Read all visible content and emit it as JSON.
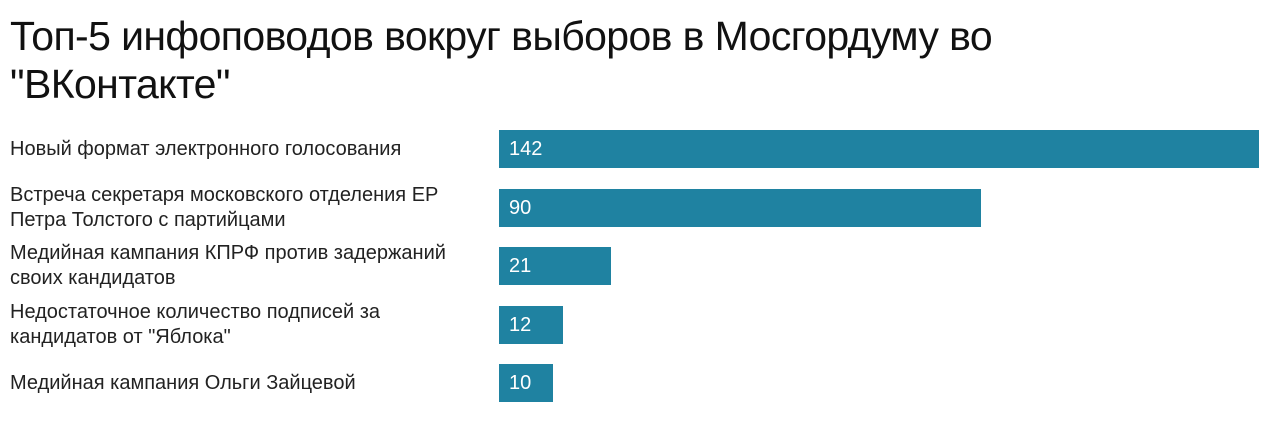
{
  "title": "Топ-5 инфоповодов вокруг выборов в Мосгордуму во \"ВКонтакте\"",
  "chart_data": {
    "type": "bar",
    "orientation": "horizontal",
    "title": "Топ-5 инфоповодов вокруг выборов в Мосгордуму во \"ВКонтакте\"",
    "categories": [
      "Новый формат электронного голосования",
      "Встреча секретаря московского отделения ЕР Петра Толстого с партийцами",
      "Медийная кампания КПРФ против задержаний своих кандидатов",
      "Недостаточное количество подписей за кандидатов от \"Яблока\"",
      "Медийная кампания Ольги Зайцевой"
    ],
    "values": [
      142,
      90,
      21,
      12,
      10
    ],
    "xlim": [
      0,
      142
    ],
    "grid": false,
    "color": "#1f82a1"
  }
}
